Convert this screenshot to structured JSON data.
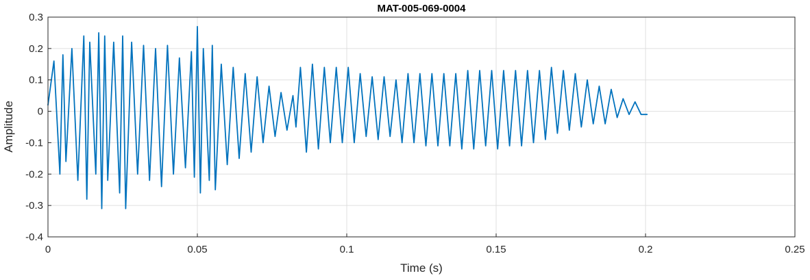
{
  "chart_data": {
    "type": "line",
    "title": "MAT-005-069-0004",
    "xlabel": "Time (s)",
    "ylabel": "Amplitude",
    "xlim": [
      0,
      0.25
    ],
    "ylim": [
      -0.4,
      0.3
    ],
    "xticks": [
      0,
      0.05,
      0.1,
      0.15,
      0.2,
      0.25
    ],
    "xtick_labels": [
      "0",
      "0.05",
      "0.1",
      "0.15",
      "0.2",
      "0.25"
    ],
    "yticks": [
      -0.4,
      -0.3,
      -0.2,
      -0.1,
      0,
      0.1,
      0.2,
      0.3
    ],
    "ytick_labels": [
      "-0.4",
      "-0.3",
      "-0.2",
      "-0.1",
      "0",
      "0.1",
      "0.2",
      "0.3"
    ],
    "grid": true,
    "line_color": "#0072BD",
    "series": [
      {
        "x": [
          0,
          0.002,
          0.004,
          0.005,
          0.006,
          0.008,
          0.01,
          0.012,
          0.013,
          0.014,
          0.016,
          0.017,
          0.018,
          0.019,
          0.02,
          0.022,
          0.024,
          0.025,
          0.026,
          0.028,
          0.03,
          0.032,
          0.034,
          0.036,
          0.038,
          0.04,
          0.042,
          0.044,
          0.046,
          0.048,
          0.049,
          0.05,
          0.051,
          0.052,
          0.054,
          0.055,
          0.056,
          0.058,
          0.06,
          0.062,
          0.064,
          0.066,
          0.068,
          0.07,
          0.072,
          0.074,
          0.076,
          0.078,
          0.08,
          0.082,
          0.083,
          0.0845,
          0.0865,
          0.0885,
          0.0905,
          0.0925,
          0.0945,
          0.0965,
          0.0985,
          0.1005,
          0.1025,
          0.1045,
          0.1065,
          0.1085,
          0.1105,
          0.1125,
          0.1145,
          0.1165,
          0.1185,
          0.1205,
          0.1225,
          0.1245,
          0.1265,
          0.1285,
          0.1305,
          0.1325,
          0.1345,
          0.1365,
          0.1385,
          0.1405,
          0.1425,
          0.1445,
          0.1465,
          0.1485,
          0.1505,
          0.1525,
          0.1545,
          0.1565,
          0.1585,
          0.1605,
          0.1625,
          0.1645,
          0.1665,
          0.1685,
          0.1705,
          0.1725,
          0.1745,
          0.1765,
          0.1785,
          0.1805,
          0.1825,
          0.1845,
          0.1865,
          0.1885,
          0.1905,
          0.1925,
          0.1945,
          0.1965,
          0.1985,
          0.2005
        ],
        "y": [
          0.02,
          0.16,
          -0.2,
          0.18,
          -0.16,
          0.2,
          -0.22,
          0.24,
          -0.28,
          0.22,
          -0.2,
          0.25,
          -0.31,
          0.24,
          -0.22,
          0.22,
          -0.26,
          0.24,
          -0.31,
          0.22,
          -0.2,
          0.21,
          -0.22,
          0.2,
          -0.24,
          0.21,
          -0.2,
          0.17,
          -0.18,
          0.19,
          -0.21,
          0.27,
          -0.26,
          0.2,
          -0.22,
          0.21,
          -0.25,
          0.15,
          -0.17,
          0.14,
          -0.15,
          0.12,
          -0.13,
          0.11,
          -0.1,
          0.08,
          -0.08,
          0.06,
          -0.06,
          0.05,
          -0.05,
          0.14,
          -0.13,
          0.15,
          -0.12,
          0.14,
          -0.1,
          0.14,
          -0.1,
          0.14,
          -0.1,
          0.12,
          -0.08,
          0.11,
          -0.09,
          0.11,
          -0.08,
          0.1,
          -0.1,
          0.12,
          -0.1,
          0.12,
          -0.11,
          0.12,
          -0.11,
          0.12,
          -0.11,
          0.12,
          -0.12,
          0.13,
          -0.12,
          0.13,
          -0.11,
          0.13,
          -0.12,
          0.13,
          -0.11,
          0.13,
          -0.11,
          0.13,
          -0.1,
          0.13,
          -0.09,
          0.14,
          -0.07,
          0.13,
          -0.06,
          0.12,
          -0.05,
          0.1,
          -0.04,
          0.08,
          -0.04,
          0.07,
          -0.02,
          0.04,
          -0.01,
          0.03,
          -0.01,
          -0.01
        ]
      }
    ]
  }
}
